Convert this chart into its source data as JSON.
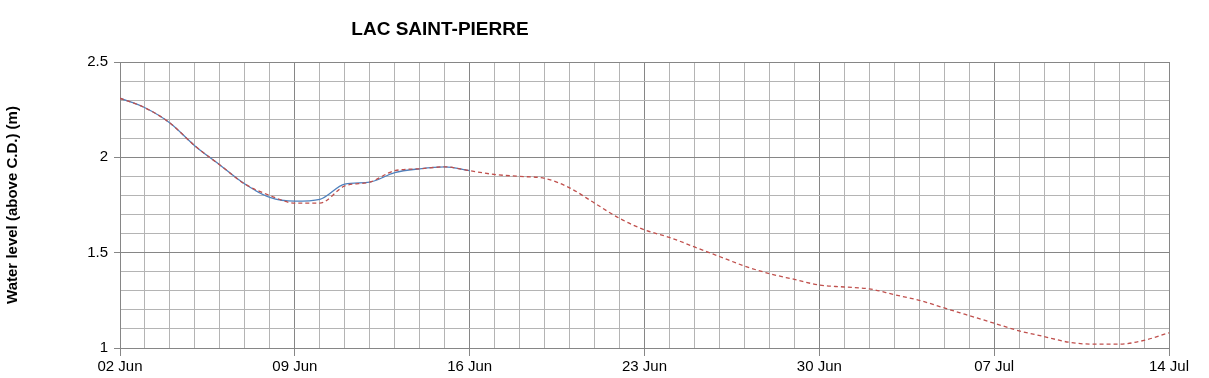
{
  "chart_data": {
    "type": "line",
    "title": "LAC SAINT-PIERRE",
    "ylabel": "Water level (above C.D.) (m)",
    "xlim": [
      "--06-02",
      "--07-14"
    ],
    "xticks": [
      {
        "value": "--06-02",
        "label": "02 Jun"
      },
      {
        "value": "--06-03",
        "label": null
      },
      {
        "value": "--06-04",
        "label": null
      },
      {
        "value": "--06-05",
        "label": null
      },
      {
        "value": "--06-06",
        "label": null
      },
      {
        "value": "--06-07",
        "label": null
      },
      {
        "value": "--06-08",
        "label": null
      },
      {
        "value": "--06-09",
        "label": "09 Jun"
      },
      {
        "value": "--06-10",
        "label": null
      },
      {
        "value": "--06-11",
        "label": null
      },
      {
        "value": "--06-12",
        "label": null
      },
      {
        "value": "--06-13",
        "label": null
      },
      {
        "value": "--06-14",
        "label": null
      },
      {
        "value": "--06-15",
        "label": null
      },
      {
        "value": "--06-16",
        "label": "16 Jun"
      },
      {
        "value": "--06-17",
        "label": null
      },
      {
        "value": "--06-18",
        "label": null
      },
      {
        "value": "--06-19",
        "label": null
      },
      {
        "value": "--06-20",
        "label": null
      },
      {
        "value": "--06-21",
        "label": null
      },
      {
        "value": "--06-22",
        "label": null
      },
      {
        "value": "--06-23",
        "label": "23 Jun"
      },
      {
        "value": "--06-24",
        "label": null
      },
      {
        "value": "--06-25",
        "label": null
      },
      {
        "value": "--06-26",
        "label": null
      },
      {
        "value": "--06-27",
        "label": null
      },
      {
        "value": "--06-28",
        "label": null
      },
      {
        "value": "--06-29",
        "label": null
      },
      {
        "value": "--06-30",
        "label": "30 Jun"
      },
      {
        "value": "--07-01",
        "label": null
      },
      {
        "value": "--07-02",
        "label": null
      },
      {
        "value": "--07-03",
        "label": null
      },
      {
        "value": "--07-04",
        "label": null
      },
      {
        "value": "--07-05",
        "label": null
      },
      {
        "value": "--07-06",
        "label": null
      },
      {
        "value": "--07-07",
        "label": "07 Jul"
      },
      {
        "value": "--07-08",
        "label": null
      },
      {
        "value": "--07-09",
        "label": null
      },
      {
        "value": "--07-10",
        "label": null
      },
      {
        "value": "--07-11",
        "label": null
      },
      {
        "value": "--07-12",
        "label": null
      },
      {
        "value": "--07-13",
        "label": null
      },
      {
        "value": "--07-14",
        "label": "14 Jul"
      }
    ],
    "ylim": [
      1,
      2.5
    ],
    "yticks": [
      1,
      {
        "value": 1.1,
        "label": null
      },
      {
        "value": 1.2,
        "label": null
      },
      {
        "value": 1.3,
        "label": null
      },
      {
        "value": 1.4,
        "label": null
      },
      1.5,
      {
        "value": 1.6,
        "label": null
      },
      {
        "value": 1.7,
        "label": null
      },
      {
        "value": 1.8,
        "label": null
      },
      {
        "value": 1.9,
        "label": null
      },
      2,
      {
        "value": 2.1,
        "label": null
      },
      {
        "value": 2.2,
        "label": null
      },
      {
        "value": 2.3,
        "label": null
      },
      {
        "value": 2.4,
        "label": null
      },
      2.5
    ],
    "grid": true,
    "marker": "none",
    "legend": false,
    "series": [
      {
        "color": "#4f81bd",
        "line_style": "solid",
        "x": [
          "--06-02",
          "--06-03",
          "--06-04",
          "--06-05",
          "--06-06",
          "--06-07",
          "--06-08",
          "--06-09",
          "--06-10",
          "--06-11",
          "--06-12",
          "--06-13",
          "--06-14",
          "--06-15",
          "--06-16"
        ],
        "values": [
          2.31,
          2.26,
          2.18,
          2.06,
          1.96,
          1.86,
          1.79,
          1.77,
          1.78,
          1.86,
          1.87,
          1.92,
          1.94,
          1.95,
          1.93
        ]
      },
      {
        "color": "#c0504d",
        "line_style": "dashed",
        "x": [
          "--06-02",
          "--06-03",
          "--06-04",
          "--06-05",
          "--06-06",
          "--06-07",
          "--06-08",
          "--06-09",
          "--06-10",
          "--06-11",
          "--06-12",
          "--06-13",
          "--06-14",
          "--06-15",
          "--06-16",
          "--06-17",
          "--06-18",
          "--06-19",
          "--06-20",
          "--06-21",
          "--06-22",
          "--06-23",
          "--06-24",
          "--06-25",
          "--06-26",
          "--06-27",
          "--06-28",
          "--06-29",
          "--06-30",
          "--07-01",
          "--07-02",
          "--07-03",
          "--07-04",
          "--07-05",
          "--07-06",
          "--07-07",
          "--07-08",
          "--07-09",
          "--07-10",
          "--07-11",
          "--07-12",
          "--07-13",
          "--07-14"
        ],
        "values": [
          2.31,
          2.26,
          2.18,
          2.06,
          1.96,
          1.86,
          1.8,
          1.76,
          1.76,
          1.85,
          1.87,
          1.93,
          1.94,
          1.95,
          1.93,
          1.91,
          1.9,
          1.89,
          1.84,
          1.76,
          1.68,
          1.62,
          1.58,
          1.53,
          1.48,
          1.43,
          1.39,
          1.36,
          1.33,
          1.32,
          1.31,
          1.28,
          1.25,
          1.21,
          1.17,
          1.13,
          1.09,
          1.06,
          1.03,
          1.02,
          1.02,
          1.04,
          1.08
        ]
      }
    ]
  }
}
